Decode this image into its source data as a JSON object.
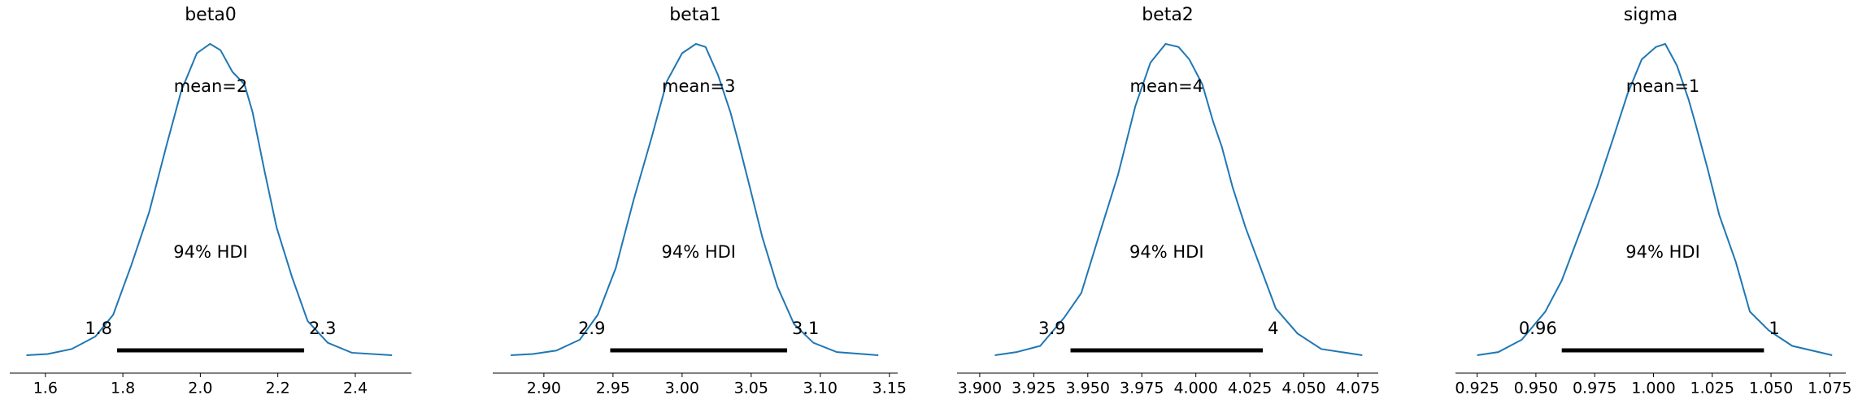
{
  "chart_data": [
    {
      "type": "density",
      "title": "beta0",
      "color": "#1f77b4",
      "x": [
        1.551,
        1.606,
        1.668,
        1.729,
        1.775,
        1.822,
        1.868,
        1.914,
        1.951,
        1.991,
        2.025,
        2.052,
        2.083,
        2.114,
        2.135,
        2.166,
        2.197,
        2.237,
        2.277,
        2.329,
        2.391,
        2.495
      ],
      "values": [
        0,
        0.004,
        0.02,
        0.06,
        0.13,
        0.29,
        0.46,
        0.68,
        0.85,
        0.97,
        1.0,
        0.98,
        0.91,
        0.87,
        0.78,
        0.59,
        0.41,
        0.25,
        0.11,
        0.04,
        0.008,
        0
      ],
      "xlim": [
        1.508,
        2.545
      ],
      "ylim": [
        0,
        1
      ],
      "xticks": [
        {
          "value": 1.6,
          "label": "1.6"
        },
        {
          "value": 1.8,
          "label": "1.8"
        },
        {
          "value": 2.0,
          "label": "2.0"
        },
        {
          "value": 2.2,
          "label": "2.2"
        },
        {
          "value": 2.4,
          "label": "2.4"
        }
      ],
      "mean_label": "mean=2",
      "hdi_label": "94% HDI",
      "hdi": [
        {
          "value": 1.785,
          "label": "1.8"
        },
        {
          "value": 2.268,
          "label": "2.3"
        }
      ]
    },
    {
      "type": "density",
      "title": "beta1",
      "color": "#1f77b4",
      "x": [
        2.876,
        2.892,
        2.909,
        2.926,
        2.939,
        2.952,
        2.965,
        2.978,
        2.989,
        3.0,
        3.01,
        3.017,
        3.026,
        3.035,
        3.041,
        3.049,
        3.058,
        3.069,
        3.081,
        3.095,
        3.112,
        3.142
      ],
      "values": [
        0,
        0.004,
        0.015,
        0.05,
        0.13,
        0.28,
        0.5,
        0.7,
        0.88,
        0.97,
        1.0,
        0.99,
        0.9,
        0.78,
        0.68,
        0.54,
        0.38,
        0.22,
        0.1,
        0.04,
        0.01,
        0
      ],
      "xlim": [
        2.863,
        3.156
      ],
      "ylim": [
        0,
        1
      ],
      "xticks": [
        {
          "value": 2.9,
          "label": "2.90"
        },
        {
          "value": 2.95,
          "label": "2.95"
        },
        {
          "value": 3.0,
          "label": "3.00"
        },
        {
          "value": 3.05,
          "label": "3.05"
        },
        {
          "value": 3.1,
          "label": "3.10"
        },
        {
          "value": 3.15,
          "label": "3.15"
        }
      ],
      "mean_label": "mean=3",
      "hdi_label": "94% HDI",
      "hdi": [
        {
          "value": 2.948,
          "label": "2.9"
        },
        {
          "value": 3.076,
          "label": "3.1"
        }
      ]
    },
    {
      "type": "density",
      "title": "beta2",
      "color": "#1f77b4",
      "x": [
        3.907,
        3.917,
        3.928,
        3.939,
        3.947,
        3.955,
        3.964,
        3.972,
        3.979,
        3.986,
        3.992,
        3.997,
        4.003,
        4.008,
        4.012,
        4.017,
        4.023,
        4.03,
        4.037,
        4.047,
        4.058,
        4.077
      ],
      "values": [
        0,
        0.01,
        0.03,
        0.12,
        0.2,
        0.38,
        0.58,
        0.8,
        0.94,
        1.0,
        0.99,
        0.95,
        0.87,
        0.75,
        0.67,
        0.54,
        0.41,
        0.28,
        0.15,
        0.07,
        0.02,
        0
      ],
      "xlim": [
        3.8895,
        4.0844
      ],
      "ylim": [
        0,
        1
      ],
      "xticks": [
        {
          "value": 3.9,
          "label": "3.900"
        },
        {
          "value": 3.925,
          "label": "3.925"
        },
        {
          "value": 3.95,
          "label": "3.950"
        },
        {
          "value": 3.975,
          "label": "3.975"
        },
        {
          "value": 4.0,
          "label": "4.000"
        },
        {
          "value": 4.025,
          "label": "4.025"
        },
        {
          "value": 4.05,
          "label": "4.050"
        },
        {
          "value": 4.075,
          "label": "4.075"
        }
      ],
      "mean_label": "mean=4",
      "hdi_label": "94% HDI",
      "hdi": [
        {
          "value": 3.942,
          "label": "3.9"
        },
        {
          "value": 4.031,
          "label": "4"
        }
      ]
    },
    {
      "type": "density",
      "title": "sigma",
      "color": "#1f77b4",
      "x": [
        0.925,
        0.934,
        0.944,
        0.954,
        0.961,
        0.968,
        0.976,
        0.983,
        0.989,
        0.995,
        1.001,
        1.005,
        1.01,
        1.015,
        1.018,
        1.023,
        1.028,
        1.035,
        1.041,
        1.049,
        1.059,
        1.076
      ],
      "values": [
        0,
        0.01,
        0.05,
        0.14,
        0.24,
        0.38,
        0.54,
        0.7,
        0.84,
        0.95,
        0.99,
        1.0,
        0.93,
        0.82,
        0.74,
        0.6,
        0.45,
        0.3,
        0.14,
        0.08,
        0.03,
        0
      ],
      "xlim": [
        0.9158,
        1.0818
      ],
      "ylim": [
        0,
        1
      ],
      "xticks": [
        {
          "value": 0.925,
          "label": "0.925"
        },
        {
          "value": 0.95,
          "label": "0.950"
        },
        {
          "value": 0.975,
          "label": "0.975"
        },
        {
          "value": 1.0,
          "label": "1.000"
        },
        {
          "value": 1.025,
          "label": "1.025"
        },
        {
          "value": 1.05,
          "label": "1.050"
        },
        {
          "value": 1.075,
          "label": "1.075"
        }
      ],
      "mean_label": "mean=1",
      "hdi_label": "94% HDI",
      "hdi": [
        {
          "value": 0.961,
          "label": "0.96"
        },
        {
          "value": 1.047,
          "label": "1"
        }
      ]
    }
  ]
}
